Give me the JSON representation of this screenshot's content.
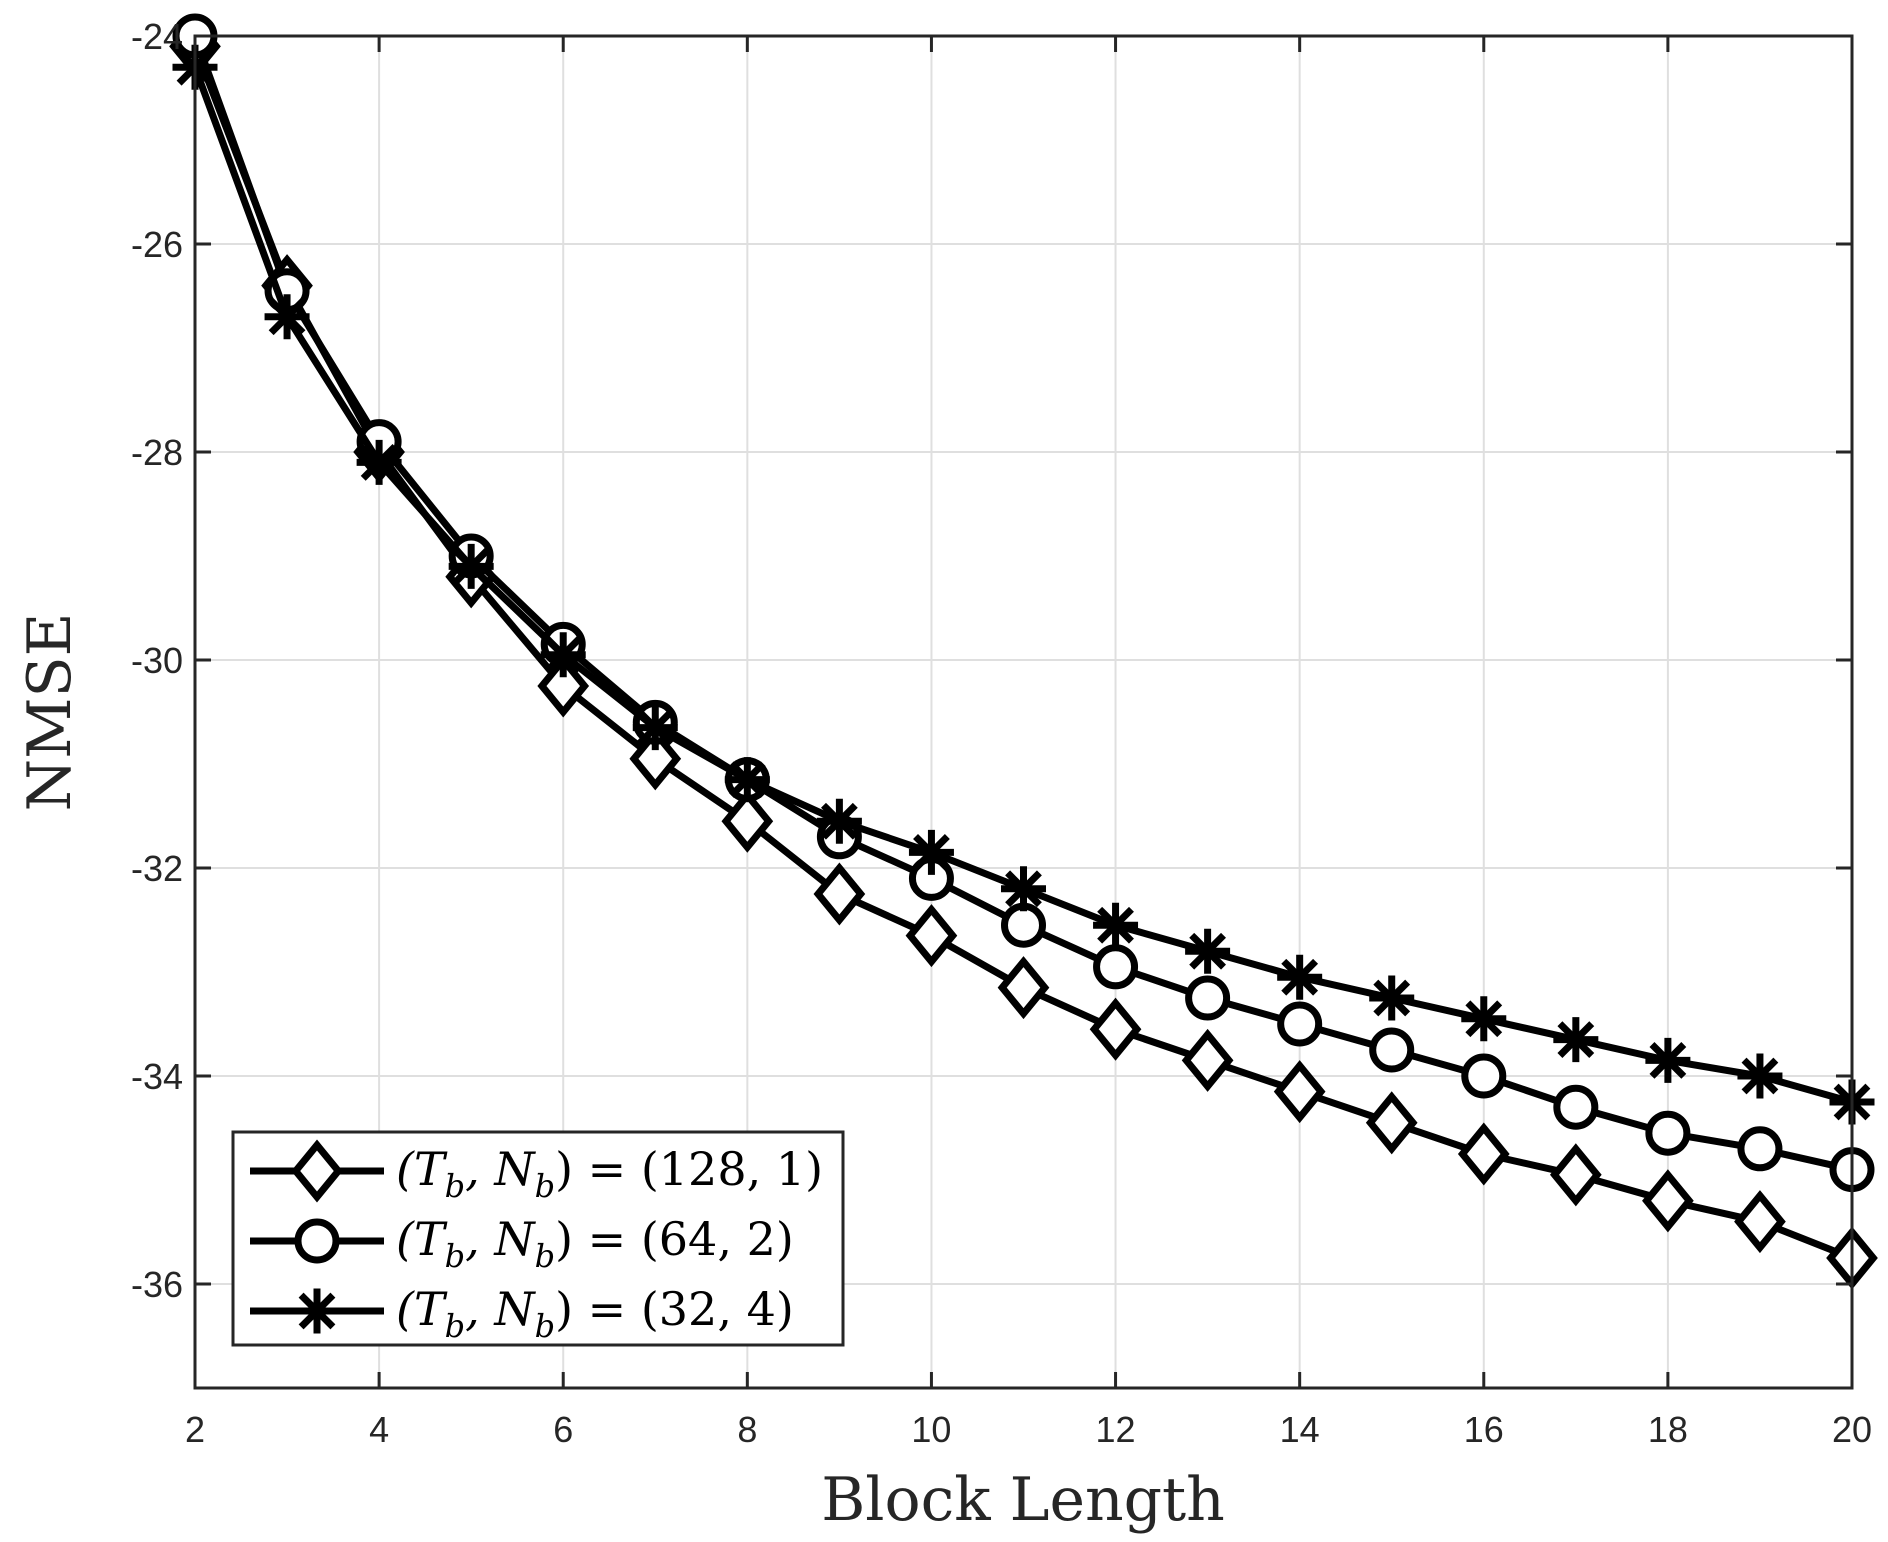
{
  "chart_data": {
    "type": "line",
    "xlabel": "Block Length",
    "ylabel": "NMSE",
    "xlim": [
      2,
      20
    ],
    "ylim": [
      -37,
      -24
    ],
    "xticks": [
      2,
      4,
      6,
      8,
      10,
      12,
      14,
      16,
      18,
      20
    ],
    "yticks": [
      -24,
      -26,
      -28,
      -30,
      -32,
      -34,
      -36
    ],
    "grid": true,
    "legend_position": "bottom-left",
    "x": [
      2,
      3,
      4,
      5,
      6,
      7,
      8,
      9,
      10,
      11,
      12,
      13,
      14,
      15,
      16,
      17,
      18,
      19,
      20
    ],
    "series": [
      {
        "name": "(T_b, N_b) = (128, 1)",
        "marker": "diamond",
        "values": [
          -24.1,
          -26.4,
          -28.0,
          -29.2,
          -30.25,
          -30.95,
          -31.55,
          -32.25,
          -32.65,
          -33.15,
          -33.55,
          -33.85,
          -34.15,
          -34.45,
          -34.75,
          -34.95,
          -35.2,
          -35.4,
          -35.75
        ]
      },
      {
        "name": "(T_b, N_b) = (64, 2)",
        "marker": "circle",
        "values": [
          -24.0,
          -26.45,
          -27.9,
          -29.0,
          -29.85,
          -30.6,
          -31.15,
          -31.7,
          -32.1,
          -32.55,
          -32.95,
          -33.25,
          -33.5,
          -33.75,
          -34.0,
          -34.3,
          -34.55,
          -34.7,
          -34.9
        ]
      },
      {
        "name": "(T_b, N_b) = (32, 4)",
        "marker": "asterisk",
        "values": [
          -24.3,
          -26.7,
          -28.1,
          -29.1,
          -29.95,
          -30.65,
          -31.15,
          -31.55,
          -31.85,
          -32.2,
          -32.55,
          -32.8,
          -33.05,
          -33.25,
          -33.45,
          -33.65,
          -33.85,
          -34.0,
          -34.25
        ]
      }
    ]
  },
  "legend": {
    "entries": [
      {
        "prefix": "(T",
        "sub1": "b",
        "mid": ", N",
        "sub2": "b",
        "suffix": ") = (128, 1)"
      },
      {
        "prefix": "(T",
        "sub1": "b",
        "mid": ", N",
        "sub2": "b",
        "suffix": ") = (64, 2)"
      },
      {
        "prefix": "(T",
        "sub1": "b",
        "mid": ", N",
        "sub2": "b",
        "suffix": ") = (32, 4)"
      }
    ]
  }
}
